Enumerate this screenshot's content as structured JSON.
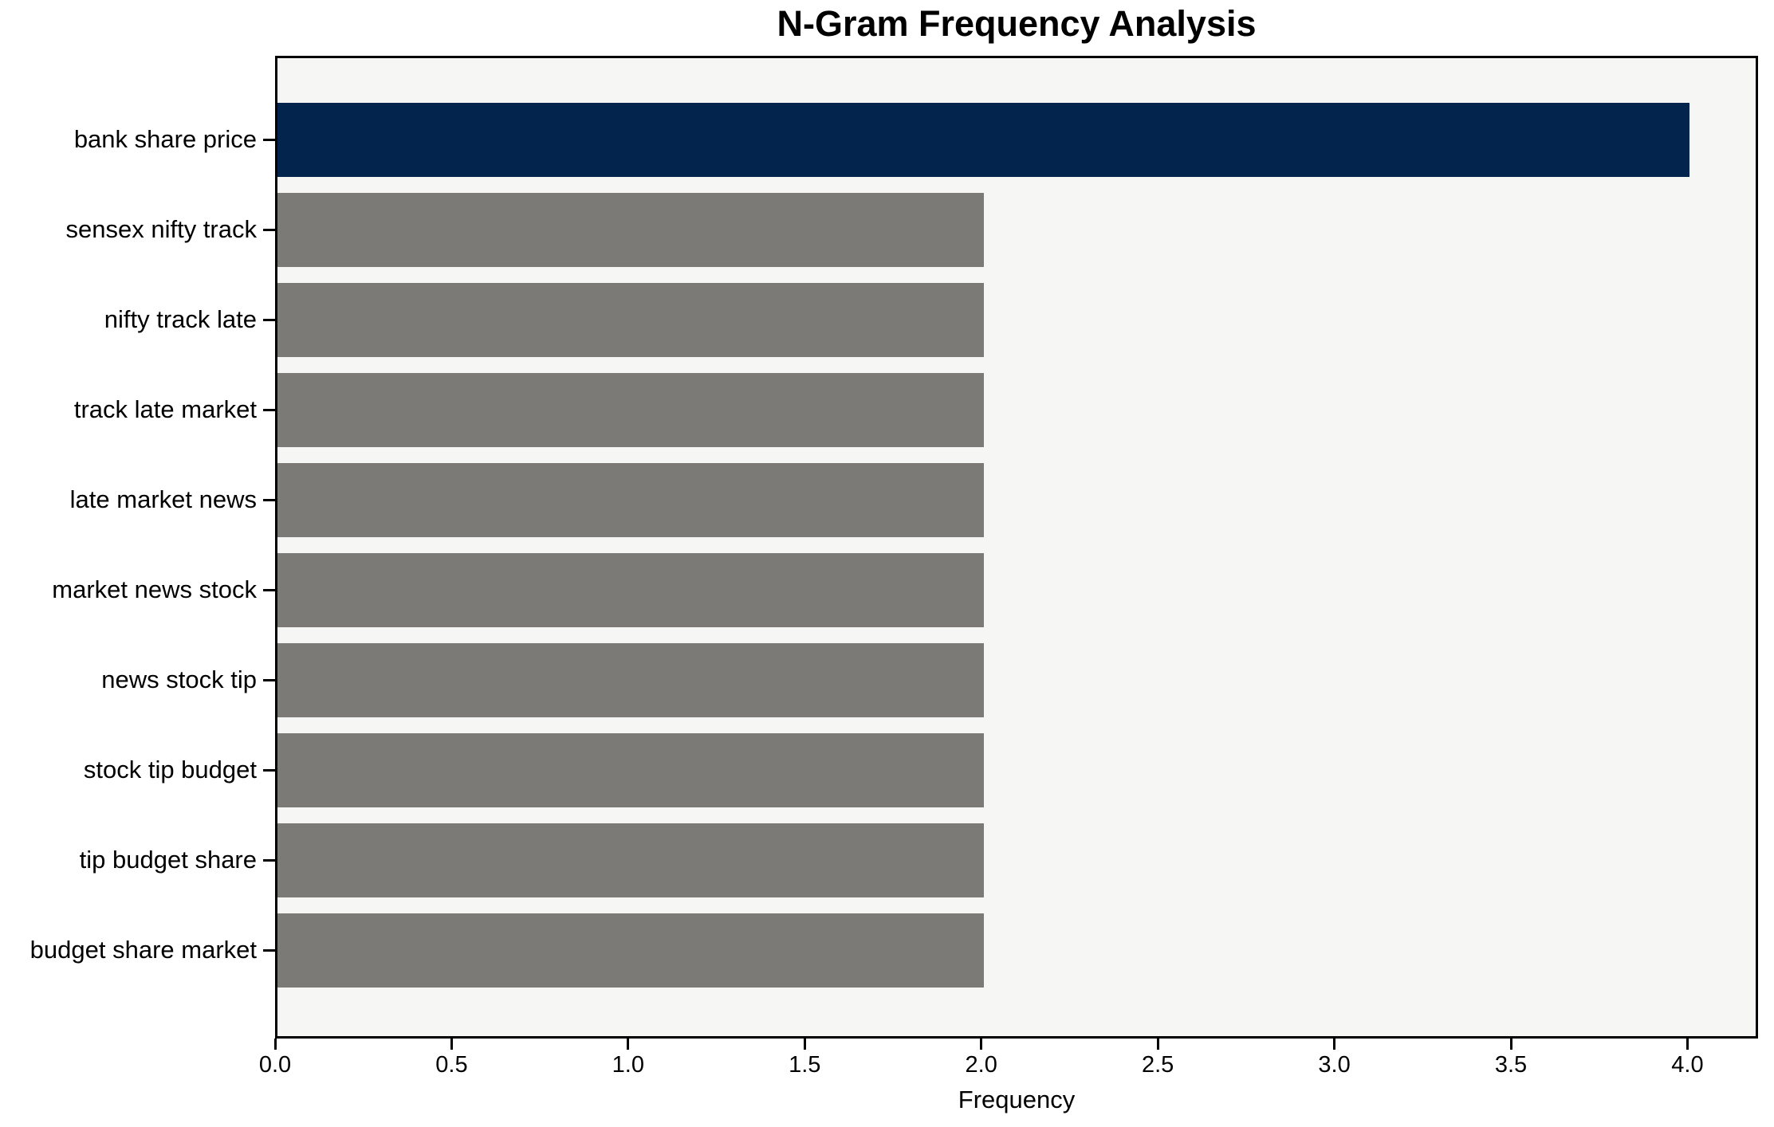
{
  "chart_data": {
    "type": "bar",
    "orientation": "horizontal",
    "title": "N-Gram Frequency Analysis",
    "xlabel": "Frequency",
    "ylabel": "",
    "categories": [
      "bank share price",
      "sensex nifty track",
      "nifty track late",
      "track late market",
      "late market news",
      "market news stock",
      "news stock tip",
      "stock tip budget",
      "tip budget share",
      "budget share market"
    ],
    "values": [
      4,
      2,
      2,
      2,
      2,
      2,
      2,
      2,
      2,
      2
    ],
    "highlight_index": 0,
    "xlim": [
      0,
      4.2
    ],
    "xticks": [
      0.0,
      0.5,
      1.0,
      1.5,
      2.0,
      2.5,
      3.0,
      3.5,
      4.0
    ],
    "xtick_labels": [
      "0.0",
      "0.5",
      "1.0",
      "1.5",
      "2.0",
      "2.5",
      "3.0",
      "3.5",
      "4.0"
    ],
    "grid": false,
    "legend": null,
    "colors": {
      "highlight_bar": "#02244D",
      "default_bar": "#7B7A76",
      "plot_background": "#F6F6F5",
      "figure_background": "#FFFFFF",
      "spine": "#000000",
      "text": "#000000"
    }
  }
}
